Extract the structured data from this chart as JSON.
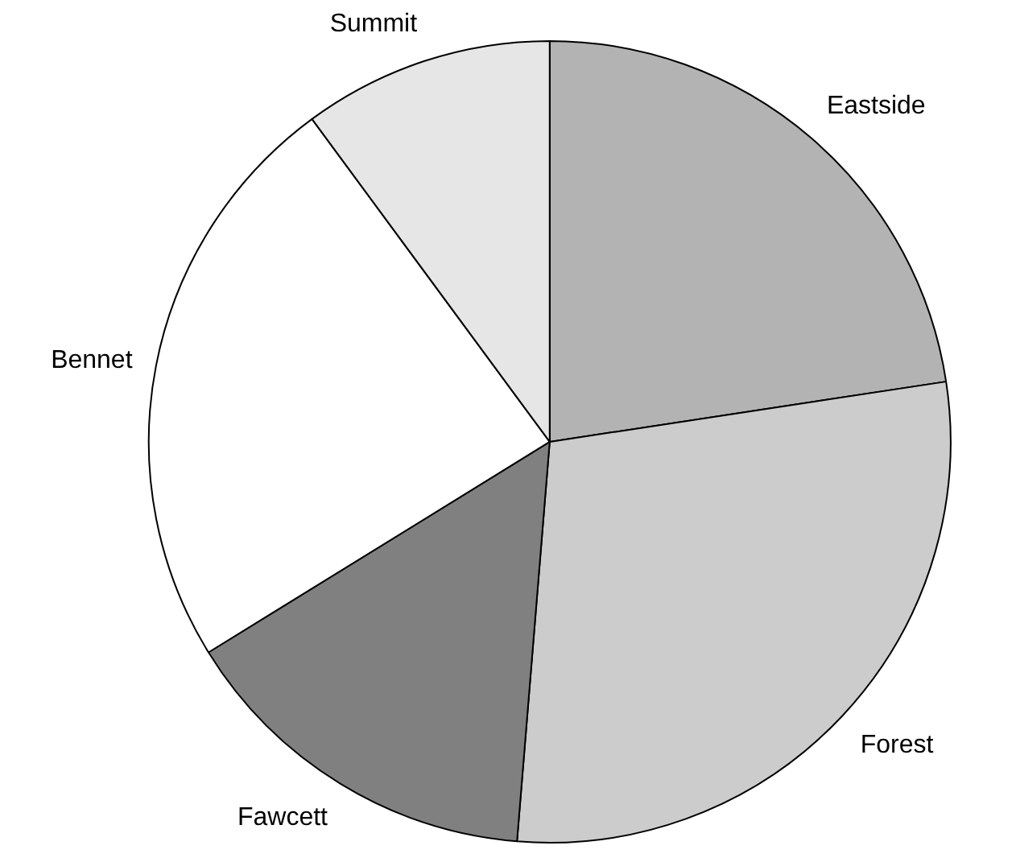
{
  "chart_data": {
    "type": "pie",
    "categories": [
      "Eastside",
      "Forest",
      "Fawcett",
      "Bennet",
      "Summit"
    ],
    "values": [
      22.6,
      28.7,
      14.9,
      23.7,
      10.1
    ],
    "colors": [
      "#b3b3b3",
      "#cccccc",
      "#808080",
      "#ffffff",
      "#e6e6e6"
    ]
  }
}
